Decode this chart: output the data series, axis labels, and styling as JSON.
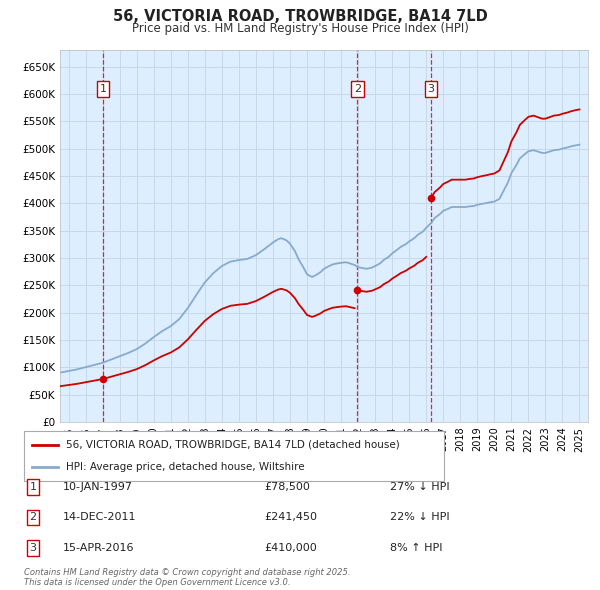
{
  "title": "56, VICTORIA ROAD, TROWBRIDGE, BA14 7LD",
  "subtitle": "Price paid vs. HM Land Registry's House Price Index (HPI)",
  "legend_line1": "56, VICTORIA ROAD, TROWBRIDGE, BA14 7LD (detached house)",
  "legend_line2": "HPI: Average price, detached house, Wiltshire",
  "footer": "Contains HM Land Registry data © Crown copyright and database right 2025.\nThis data is licensed under the Open Government Licence v3.0.",
  "transactions": [
    {
      "num": 1,
      "date": "10-JAN-1997",
      "price": 78500,
      "price_str": "£78,500",
      "pct": "27%",
      "dir": "↓",
      "x": 1997.03
    },
    {
      "num": 2,
      "date": "14-DEC-2011",
      "price": 241450,
      "price_str": "£241,450",
      "pct": "22%",
      "dir": "↓",
      "x": 2011.95
    },
    {
      "num": 3,
      "date": "15-APR-2016",
      "price": 410000,
      "price_str": "£410,000",
      "pct": "8%",
      "dir": "↑",
      "x": 2016.29
    }
  ],
  "price_color": "#cc0000",
  "hpi_color": "#88aacc",
  "vline_color": "#cc0000",
  "grid_color": "#c8d8e8",
  "background_color": "#ddeeff",
  "ylim": [
    0,
    680000
  ],
  "yticks": [
    0,
    50000,
    100000,
    150000,
    200000,
    250000,
    300000,
    350000,
    400000,
    450000,
    500000,
    550000,
    600000,
    650000
  ],
  "xlim": [
    1994.5,
    2025.5
  ],
  "xticks": [
    1995,
    1996,
    1997,
    1998,
    1999,
    2000,
    2001,
    2002,
    2003,
    2004,
    2005,
    2006,
    2007,
    2008,
    2009,
    2010,
    2011,
    2012,
    2013,
    2014,
    2015,
    2016,
    2017,
    2018,
    2019,
    2020,
    2021,
    2022,
    2023,
    2024,
    2025
  ],
  "hpi_data": {
    "years": [
      1994.5,
      1995.0,
      1995.5,
      1996.0,
      1996.5,
      1997.0,
      1997.5,
      1998.0,
      1998.5,
      1999.0,
      1999.5,
      2000.0,
      2000.5,
      2001.0,
      2001.5,
      2002.0,
      2002.5,
      2003.0,
      2003.5,
      2004.0,
      2004.5,
      2005.0,
      2005.5,
      2006.0,
      2006.5,
      2007.0,
      2007.3,
      2007.5,
      2007.8,
      2008.0,
      2008.3,
      2008.5,
      2008.8,
      2009.0,
      2009.3,
      2009.5,
      2009.8,
      2010.0,
      2010.3,
      2010.5,
      2010.8,
      2011.0,
      2011.3,
      2011.5,
      2011.8,
      2012.0,
      2012.3,
      2012.5,
      2012.8,
      2013.0,
      2013.3,
      2013.5,
      2013.8,
      2014.0,
      2014.3,
      2014.5,
      2014.8,
      2015.0,
      2015.3,
      2015.5,
      2015.8,
      2016.0,
      2016.3,
      2016.5,
      2016.8,
      2017.0,
      2017.3,
      2017.5,
      2017.8,
      2018.0,
      2018.3,
      2018.5,
      2018.8,
      2019.0,
      2019.3,
      2019.5,
      2019.8,
      2020.0,
      2020.3,
      2020.5,
      2020.8,
      2021.0,
      2021.3,
      2021.5,
      2021.8,
      2022.0,
      2022.3,
      2022.5,
      2022.8,
      2023.0,
      2023.3,
      2023.5,
      2023.8,
      2024.0,
      2024.3,
      2024.5,
      2024.8,
      2025.0
    ],
    "values": [
      90000,
      93000,
      96000,
      100000,
      104000,
      108000,
      114000,
      120000,
      126000,
      133000,
      143000,
      155000,
      166000,
      175000,
      188000,
      208000,
      232000,
      255000,
      272000,
      285000,
      293000,
      296000,
      298000,
      305000,
      316000,
      328000,
      334000,
      336000,
      332000,
      326000,
      312000,
      298000,
      282000,
      270000,
      265000,
      268000,
      274000,
      280000,
      285000,
      288000,
      290000,
      291000,
      292000,
      290000,
      287000,
      283000,
      281000,
      280000,
      282000,
      285000,
      290000,
      296000,
      302000,
      308000,
      315000,
      320000,
      325000,
      330000,
      336000,
      342000,
      348000,
      355000,
      364000,
      373000,
      380000,
      386000,
      390000,
      393000,
      393000,
      393000,
      393000,
      394000,
      395000,
      397000,
      399000,
      400000,
      402000,
      403000,
      408000,
      420000,
      438000,
      455000,
      470000,
      482000,
      490000,
      495000,
      497000,
      495000,
      492000,
      492000,
      495000,
      497000,
      498000,
      500000,
      502000,
      504000,
      506000,
      507000
    ]
  }
}
